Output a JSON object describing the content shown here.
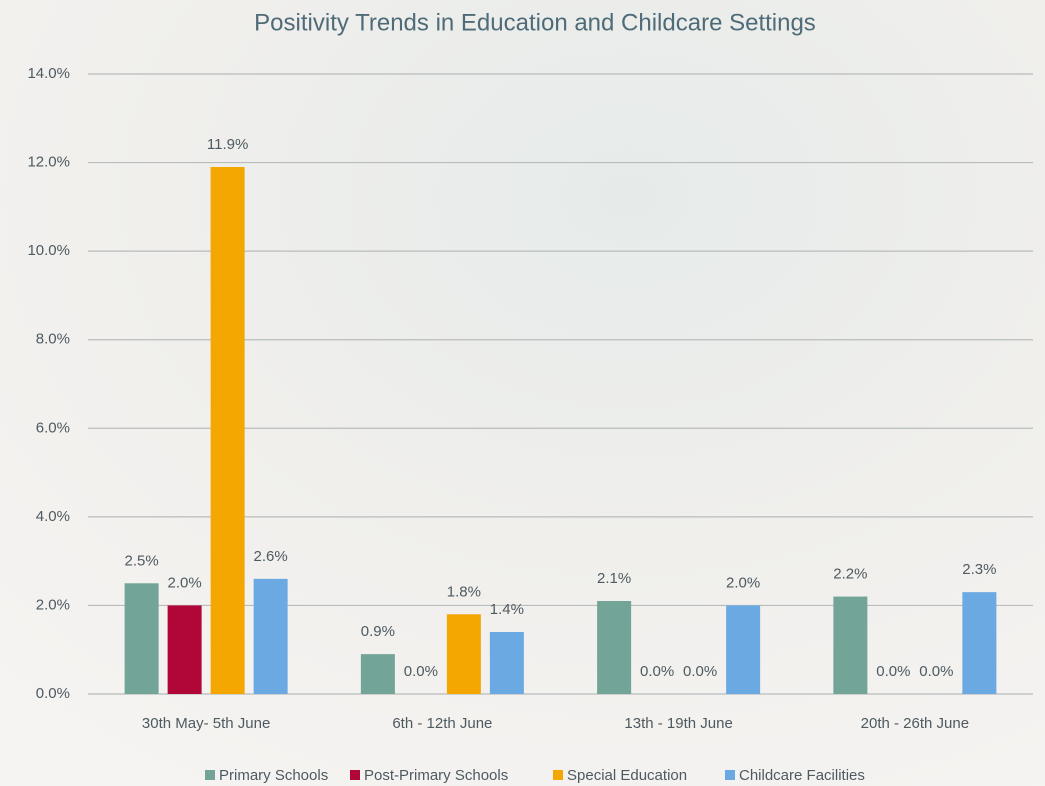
{
  "chart_data": {
    "type": "bar",
    "title": "Positivity Trends in Education and Childcare Settings",
    "categories": [
      "30th May- 5th June",
      "6th - 12th June",
      "13th - 19th June",
      "20th - 26th June"
    ],
    "series": [
      {
        "name": "Primary Schools",
        "color": "#72a497",
        "values": [
          2.5,
          0.9,
          2.1,
          2.2
        ],
        "value_labels": [
          "2.5%",
          "0.9%",
          "2.1%",
          "2.2%"
        ]
      },
      {
        "name": "Post-Primary Schools",
        "color": "#b00638",
        "values": [
          2.0,
          0.0,
          0.0,
          0.0
        ],
        "value_labels": [
          "2.0%",
          "0.0%",
          "0.0%",
          "0.0%"
        ]
      },
      {
        "name": "Special Education",
        "color": "#f4a700",
        "values": [
          11.9,
          1.8,
          0.0,
          0.0
        ],
        "value_labels": [
          "11.9%",
          "1.8%",
          "0.0%",
          "0.0%"
        ]
      },
      {
        "name": "Childcare Facilities",
        "color": "#6aa9e2",
        "values": [
          2.6,
          1.4,
          2.0,
          2.3
        ],
        "value_labels": [
          "2.6%",
          "1.4%",
          "2.0%",
          "2.3%"
        ]
      }
    ],
    "ylim": [
      0,
      14
    ],
    "yticks": [
      {
        "value": 0,
        "label": "0.0%"
      },
      {
        "value": 2,
        "label": "2.0%"
      },
      {
        "value": 4,
        "label": "4.0%"
      },
      {
        "value": 6,
        "label": "6.0%"
      },
      {
        "value": 8,
        "label": "8.0%"
      },
      {
        "value": 10,
        "label": "10.0%"
      },
      {
        "value": 12,
        "label": "12.0%"
      },
      {
        "value": 14,
        "label": "14.0%"
      }
    ],
    "grid": true,
    "legend": "bottom"
  }
}
